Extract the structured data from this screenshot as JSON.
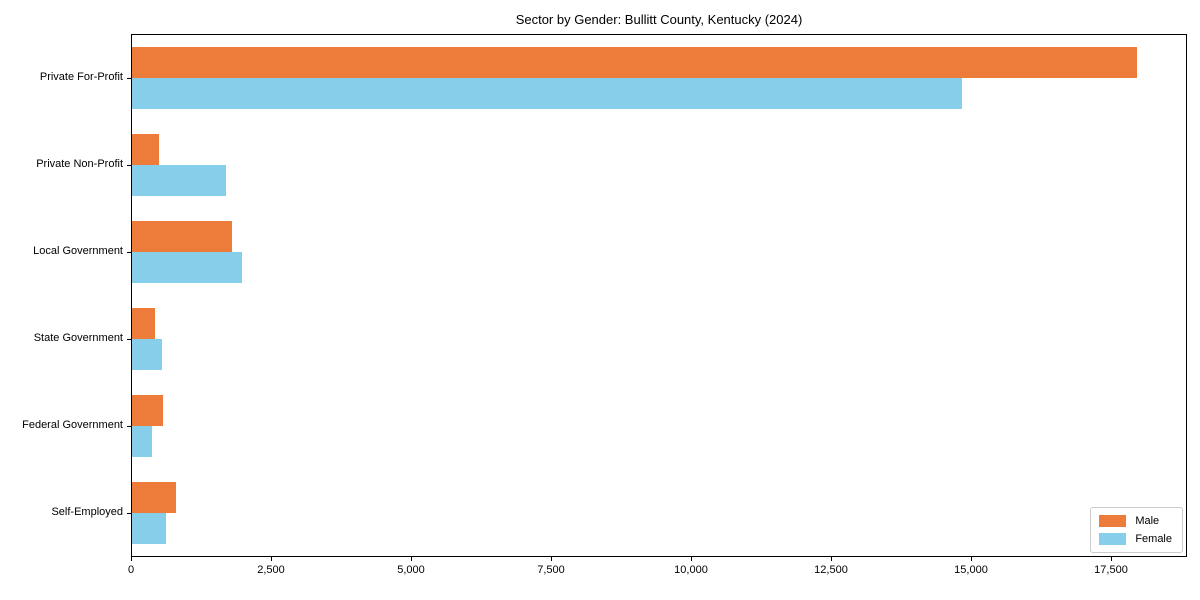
{
  "figure": {
    "title": "Sector by Gender: Bullitt County, Kentucky (2024)"
  },
  "chart_data": {
    "type": "bar",
    "orientation": "horizontal",
    "title": "Sector by Gender: Bullitt County, Kentucky (2024)",
    "categories": [
      "Private For-Profit",
      "Private Non-Profit",
      "Local Government",
      "State Government",
      "Federal Government",
      "Self-Employed"
    ],
    "series": [
      {
        "name": "Male",
        "color": "#ED7B39",
        "values": [
          17960,
          500,
          1810,
          420,
          580,
          800
        ]
      },
      {
        "name": "Female",
        "color": "#87CEEB",
        "values": [
          14840,
          1700,
          1990,
          560,
          380,
          630
        ]
      }
    ],
    "xlabel": "",
    "ylabel": "",
    "x_ticks": [
      0,
      2500,
      5000,
      7500,
      10000,
      12500,
      15000,
      17500
    ],
    "xlim": [
      0,
      18860
    ],
    "grid": false,
    "legend_position": "lower right",
    "bar_order_note": "Male bar on top, Female bar below, per category"
  },
  "legend": {
    "entries": [
      {
        "label": "Male",
        "color": "#ED7B39"
      },
      {
        "label": "Female",
        "color": "#87CEEB"
      }
    ]
  },
  "colors": {
    "male": "#ED7B39",
    "female": "#87CEEB",
    "axis": "#000000",
    "background": "#ffffff",
    "legend_border": "#cccccc"
  }
}
